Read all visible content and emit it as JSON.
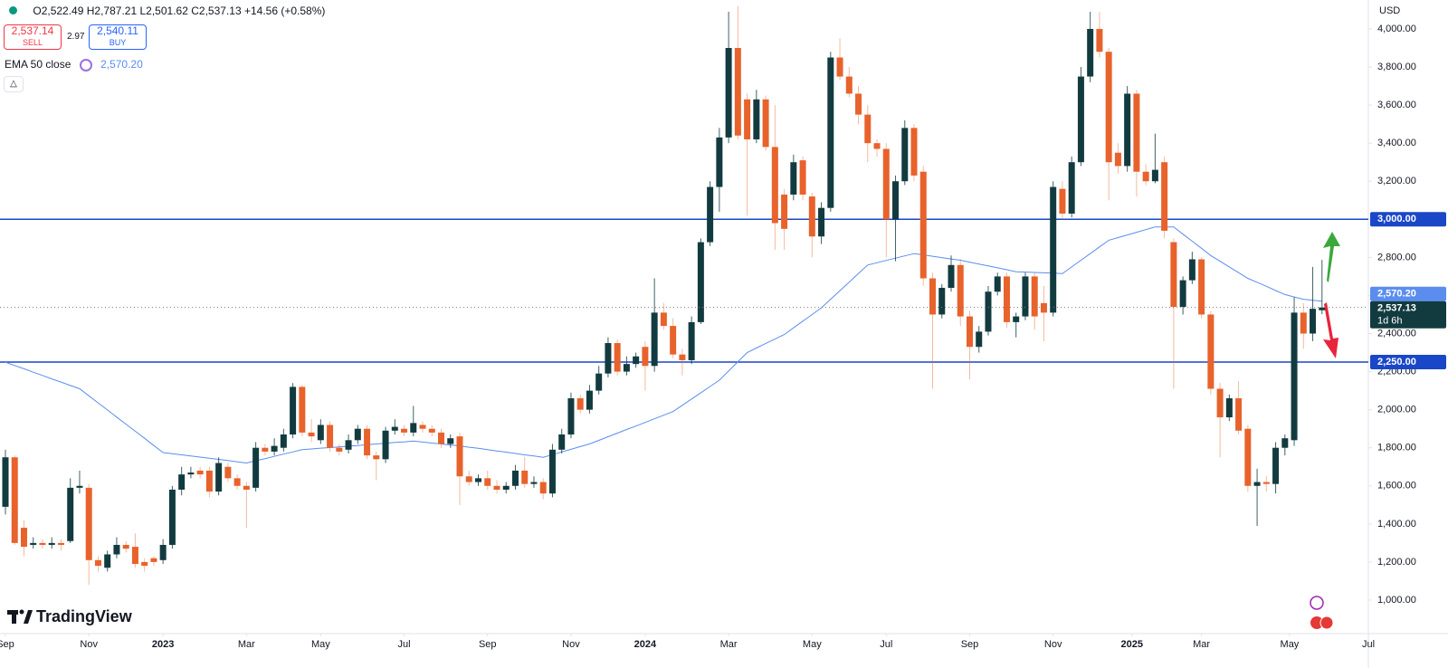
{
  "header": {
    "ohlc": [
      {
        "key": "O",
        "value": "2,522.49"
      },
      {
        "key": "H",
        "value": "2,787.21"
      },
      {
        "key": "L",
        "value": "2,501.62"
      },
      {
        "key": "C",
        "value": "2,537.13"
      }
    ],
    "change": "+14.56 (+0.58%)"
  },
  "trade": {
    "sell_price": "2,537.14",
    "sell": "SELL",
    "spread": "2.97",
    "buy_price": "2,540.11",
    "buy": "BUY"
  },
  "indicator": {
    "name": "EMA 50 close",
    "value": "2,570.20"
  },
  "currency": "USD",
  "brand": "TradingView",
  "chart_data": {
    "type": "candlestick",
    "up_color": "#123b40",
    "down_color": "#e8622c",
    "open": [
      1490,
      1750,
      1380,
      1290,
      1300,
      1290,
      1300,
      1310,
      1590,
      1590,
      1210,
      1170,
      1240,
      1290,
      1280,
      1200,
      1220,
      1210,
      1290,
      1580,
      1660,
      1680,
      1680,
      1570,
      1700,
      1640,
      1600,
      1590,
      1800,
      1780,
      1800,
      1870,
      2120,
      1880,
      1840,
      1920,
      1800,
      1790,
      1840,
      1900,
      1760,
      1740,
      1890,
      1900,
      1880,
      1920,
      1900,
      1880,
      1820,
      1860,
      1650,
      1620,
      1640,
      1600,
      1580,
      1600,
      1680,
      1610,
      1620,
      1560,
      1790,
      1870,
      2060,
      2000,
      2100,
      2190,
      2350,
      2200,
      2240,
      2330,
      2230,
      2510,
      2440,
      2290,
      2260,
      2460,
      2880,
      3170,
      3430,
      3900,
      3630,
      3420,
      3630,
      3380,
      3130,
      3130,
      3310,
      3120,
      2910,
      3060,
      3850,
      3750,
      3660,
      3550,
      3400,
      3370,
      3000,
      3200,
      3480,
      3250,
      2690,
      2500,
      2640,
      2760,
      2490,
      2330,
      2410,
      2620,
      2700,
      2460,
      2490,
      2700,
      2560,
      2510,
      3160,
      3030,
      3300,
      3750,
      4000,
      3880,
      3350,
      3280,
      3660,
      3250,
      3200,
      3300,
      2880,
      2540,
      2680,
      2790,
      2500,
      2110,
      1960,
      2060,
      1900,
      1600,
      1620,
      1610,
      1800,
      1840,
      2510,
      2400,
      2522.49
    ],
    "high": [
      1790,
      1760,
      1420,
      1330,
      1320,
      1330,
      1320,
      1640,
      1680,
      1610,
      1230,
      1260,
      1330,
      1310,
      1350,
      1220,
      1230,
      1320,
      1600,
      1700,
      1700,
      1700,
      1700,
      1750,
      1720,
      1660,
      1620,
      1830,
      1820,
      1850,
      1900,
      2140,
      2130,
      1950,
      1950,
      1940,
      1820,
      1870,
      1920,
      1920,
      1780,
      1910,
      1950,
      1920,
      2020,
      1940,
      1920,
      1900,
      1870,
      1880,
      1680,
      1660,
      1680,
      1630,
      1620,
      1710,
      1750,
      1650,
      1640,
      1820,
      1900,
      2090,
      2080,
      2130,
      2230,
      2380,
      2370,
      2280,
      2300,
      2360,
      2690,
      2560,
      2480,
      2320,
      2490,
      2900,
      3200,
      3480,
      4090,
      4120,
      3660,
      3680,
      3650,
      3600,
      3160,
      3340,
      3330,
      3140,
      3090,
      3880,
      3950,
      3800,
      3700,
      3600,
      3420,
      3400,
      3230,
      3520,
      3500,
      3280,
      2720,
      2660,
      2810,
      2790,
      2520,
      2440,
      2650,
      2720,
      2720,
      2510,
      2720,
      2720,
      2650,
      3200,
      3200,
      3330,
      3800,
      4090,
      4090,
      3900,
      3400,
      3700,
      3680,
      3290,
      3450,
      3330,
      2900,
      2700,
      2830,
      2800,
      2520,
      2140,
      2080,
      2150,
      1920,
      1690,
      1650,
      1830,
      1870,
      2590,
      2560,
      2750,
      2787.21
    ],
    "low": [
      1450,
      1290,
      1230,
      1270,
      1270,
      1270,
      1260,
      1300,
      1560,
      1080,
      1150,
      1150,
      1220,
      1250,
      1170,
      1150,
      1180,
      1190,
      1270,
      1550,
      1640,
      1640,
      1540,
      1550,
      1620,
      1580,
      1380,
      1570,
      1760,
      1760,
      1780,
      1850,
      1860,
      1830,
      1820,
      1780,
      1760,
      1770,
      1820,
      1740,
      1630,
      1720,
      1870,
      1860,
      1860,
      1880,
      1860,
      1800,
      1800,
      1500,
      1600,
      1600,
      1580,
      1560,
      1560,
      1580,
      1590,
      1590,
      1530,
      1540,
      1770,
      1850,
      1980,
      1980,
      2080,
      2170,
      2180,
      2180,
      2220,
      2100,
      2200,
      2420,
      2270,
      2180,
      2240,
      2450,
      2860,
      3040,
      3400,
      3420,
      3020,
      3400,
      3360,
      2840,
      2840,
      3100,
      3100,
      2800,
      2870,
      3040,
      3730,
      3640,
      3500,
      3300,
      3330,
      2800,
      2780,
      3180,
      3200,
      2650,
      2110,
      2480,
      2620,
      2440,
      2160,
      2300,
      2390,
      2600,
      2430,
      2380,
      2470,
      2420,
      2360,
      2490,
      3000,
      3010,
      3280,
      3720,
      3850,
      3100,
      3240,
      3250,
      3120,
      3180,
      3190,
      2900,
      2110,
      2500,
      2660,
      2480,
      2080,
      1750,
      1940,
      1870,
      1570,
      1390,
      1570,
      1560,
      1760,
      1810,
      2320,
      2360,
      2501.62
    ],
    "close": [
      1750,
      1300,
      1280,
      1300,
      1290,
      1300,
      1290,
      1590,
      1600,
      1210,
      1180,
      1240,
      1290,
      1270,
      1190,
      1180,
      1200,
      1290,
      1580,
      1660,
      1670,
      1660,
      1570,
      1720,
      1640,
      1600,
      1580,
      1800,
      1780,
      1810,
      1870,
      2120,
      1880,
      1860,
      1920,
      1800,
      1780,
      1840,
      1900,
      1760,
      1740,
      1890,
      1910,
      1880,
      1930,
      1900,
      1880,
      1820,
      1850,
      1650,
      1620,
      1640,
      1600,
      1580,
      1600,
      1680,
      1610,
      1620,
      1560,
      1790,
      1870,
      2060,
      2000,
      2100,
      2190,
      2350,
      2200,
      2240,
      2280,
      2230,
      2510,
      2440,
      2290,
      2260,
      2460,
      2880,
      3170,
      3430,
      3900,
      3440,
      3420,
      3630,
      3380,
      2980,
      2950,
      3300,
      3130,
      2910,
      3060,
      3850,
      3750,
      3660,
      3550,
      3400,
      3370,
      3000,
      3200,
      3480,
      3230,
      2690,
      2500,
      2640,
      2760,
      2490,
      2330,
      2410,
      2620,
      2700,
      2460,
      2490,
      2700,
      2490,
      2510,
      3170,
      3030,
      3300,
      3750,
      4000,
      3880,
      3300,
      3280,
      3660,
      3250,
      3200,
      3260,
      2940,
      2540,
      2680,
      2790,
      2500,
      2110,
      1960,
      2060,
      1890,
      1600,
      1620,
      1610,
      1800,
      1850,
      2510,
      2400,
      2530,
      2537.13
    ],
    "ema": {
      "name": "EMA 50 close",
      "color": "#5b8def",
      "values": [
        2250,
        2232,
        2215,
        2197,
        2180,
        2162,
        2145,
        2127,
        2110,
        2073,
        2036,
        1999,
        1961,
        1924,
        1887,
        1850,
        1812,
        1775,
        1769,
        1763,
        1757,
        1751,
        1745,
        1739,
        1733,
        1726,
        1720,
        1732,
        1743,
        1755,
        1767,
        1778,
        1790,
        1794,
        1798,
        1801,
        1805,
        1809,
        1812,
        1816,
        1820,
        1824,
        1828,
        1831,
        1835,
        1830,
        1825,
        1820,
        1815,
        1810,
        1803,
        1797,
        1790,
        1783,
        1777,
        1770,
        1763,
        1757,
        1750,
        1764,
        1778,
        1792,
        1806,
        1820,
        1839,
        1858,
        1877,
        1896,
        1914,
        1933,
        1952,
        1971,
        1990,
        2023,
        2056,
        2089,
        2122,
        2155,
        2203,
        2252,
        2300,
        2324,
        2348,
        2371,
        2395,
        2430,
        2465,
        2500,
        2535,
        2580,
        2625,
        2670,
        2715,
        2760,
        2772,
        2784,
        2796,
        2808,
        2820,
        2813,
        2806,
        2799,
        2792,
        2785,
        2775,
        2765,
        2755,
        2745,
        2735,
        2725,
        2723,
        2721,
        2719,
        2717,
        2715,
        2750,
        2785,
        2820,
        2855,
        2890,
        2904,
        2918,
        2932,
        2946,
        2960,
        2960,
        2960,
        2922,
        2885,
        2848,
        2810,
        2780,
        2750,
        2720,
        2690,
        2669,
        2648,
        2626,
        2605,
        2592,
        2580,
        2575,
        2570.2
      ]
    },
    "hlines": [
      {
        "value": 3000,
        "label": "3,000.00"
      },
      {
        "value": 2250,
        "label": "2,250.00"
      }
    ],
    "hline_color": "#1a47c8",
    "last_label": "2,537.13",
    "countdown": "1d 6h",
    "ylim": [
      824,
      4152
    ],
    "yticks": [
      {
        "value": 1000,
        "label": "1,000.00"
      },
      {
        "value": 1200,
        "label": "1,200.00"
      },
      {
        "value": 1400,
        "label": "1,400.00"
      },
      {
        "value": 1600,
        "label": "1,600.00"
      },
      {
        "value": 1800,
        "label": "1,800.00"
      },
      {
        "value": 2000,
        "label": "2,000.00"
      },
      {
        "value": 2200,
        "label": "2,200.00"
      },
      {
        "value": 2400,
        "label": "2,400.00"
      },
      {
        "value": 2600,
        "label": "2,600.00"
      },
      {
        "value": 2800,
        "label": "2,800.00"
      },
      {
        "value": 3200,
        "label": "3,200.00"
      },
      {
        "value": 3400,
        "label": "3,400.00"
      },
      {
        "value": 3600,
        "label": "3,600.00"
      },
      {
        "value": 3800,
        "label": "3,800.00"
      },
      {
        "value": 4000,
        "label": "4,000.00"
      }
    ],
    "xticks": [
      {
        "value": 0,
        "label": "Sep"
      },
      {
        "value": 9,
        "label": "Nov"
      },
      {
        "value": 17,
        "label": "2023"
      },
      {
        "value": 26,
        "label": "Mar"
      },
      {
        "value": 34,
        "label": "May"
      },
      {
        "value": 43,
        "label": "Jul"
      },
      {
        "value": 52,
        "label": "Sep"
      },
      {
        "value": 61,
        "label": "Nov"
      },
      {
        "value": 69,
        "label": "2024"
      },
      {
        "value": 78,
        "label": "Mar"
      },
      {
        "value": 87,
        "label": "May"
      },
      {
        "value": 95,
        "label": "Jul"
      },
      {
        "value": 104,
        "label": "Sep"
      },
      {
        "value": 113,
        "label": "Nov"
      },
      {
        "value": 121.5,
        "label": "2025"
      },
      {
        "value": 129,
        "label": "Mar"
      },
      {
        "value": 138.5,
        "label": "May"
      },
      {
        "value": 147,
        "label": "Jul"
      }
    ]
  }
}
